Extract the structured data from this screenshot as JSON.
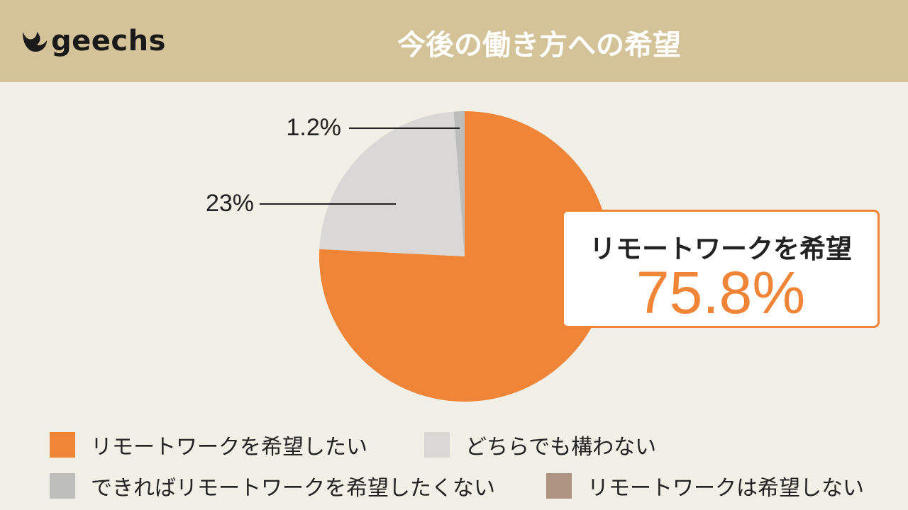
{
  "brand": {
    "name": "geechs",
    "icon": "flame-icon"
  },
  "header": {
    "title": "今後の働き方への希望"
  },
  "chart_data": {
    "type": "pie",
    "title": "今後の働き方への希望",
    "series": [
      {
        "name": "リモートワークを希望したい",
        "value": 75.8,
        "label": "",
        "color": "#f08437"
      },
      {
        "name": "どちらでも構わない",
        "value": 23,
        "label": "23%",
        "color": "#d9d8d6"
      },
      {
        "name": "できればリモートワークを希望したくない",
        "value": 1.2,
        "label": "1.2%",
        "color": "#bdbebc"
      },
      {
        "name": "リモートワークは希望しない",
        "value": 0,
        "label": "",
        "color": "#ae9282"
      }
    ],
    "legend_position": "bottom"
  },
  "callout": {
    "label": "リモートワークを希望",
    "value": "75.8%"
  }
}
